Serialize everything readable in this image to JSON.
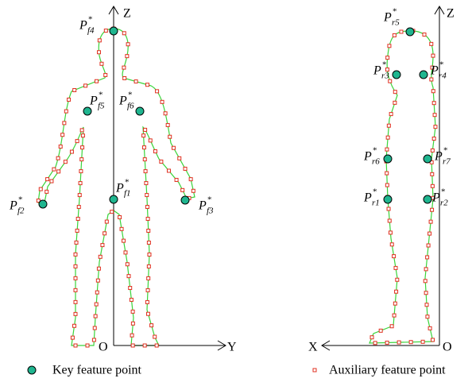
{
  "front_view": {
    "axes": {
      "vertical": "Z",
      "horizontal": "Y",
      "origin": "O"
    },
    "points": [
      {
        "base": "P",
        "sub": "f4",
        "sup": "*"
      },
      {
        "base": "P",
        "sub": "f5",
        "sup": "*"
      },
      {
        "base": "P",
        "sub": "f6",
        "sup": "*"
      },
      {
        "base": "P",
        "sub": "f1",
        "sup": "*"
      },
      {
        "base": "P",
        "sub": "f2",
        "sup": "*"
      },
      {
        "base": "P",
        "sub": "f3",
        "sup": "*"
      }
    ]
  },
  "side_view": {
    "axes": {
      "vertical": "Z",
      "horizontal": "X",
      "origin": "O"
    },
    "points": [
      {
        "base": "P",
        "sub": "r5",
        "sup": "*"
      },
      {
        "base": "P",
        "sub": "r3",
        "sup": "*"
      },
      {
        "base": "P",
        "sub": "r4",
        "sup": "*"
      },
      {
        "base": "P",
        "sub": "r6",
        "sup": "*"
      },
      {
        "base": "P",
        "sub": "r7",
        "sup": "*"
      },
      {
        "base": "P",
        "sub": "r1",
        "sup": "*"
      },
      {
        "base": "P",
        "sub": "r2",
        "sup": "*"
      }
    ]
  },
  "legend": {
    "key": "Key feature point",
    "auxiliary": "Auxiliary feature point"
  }
}
